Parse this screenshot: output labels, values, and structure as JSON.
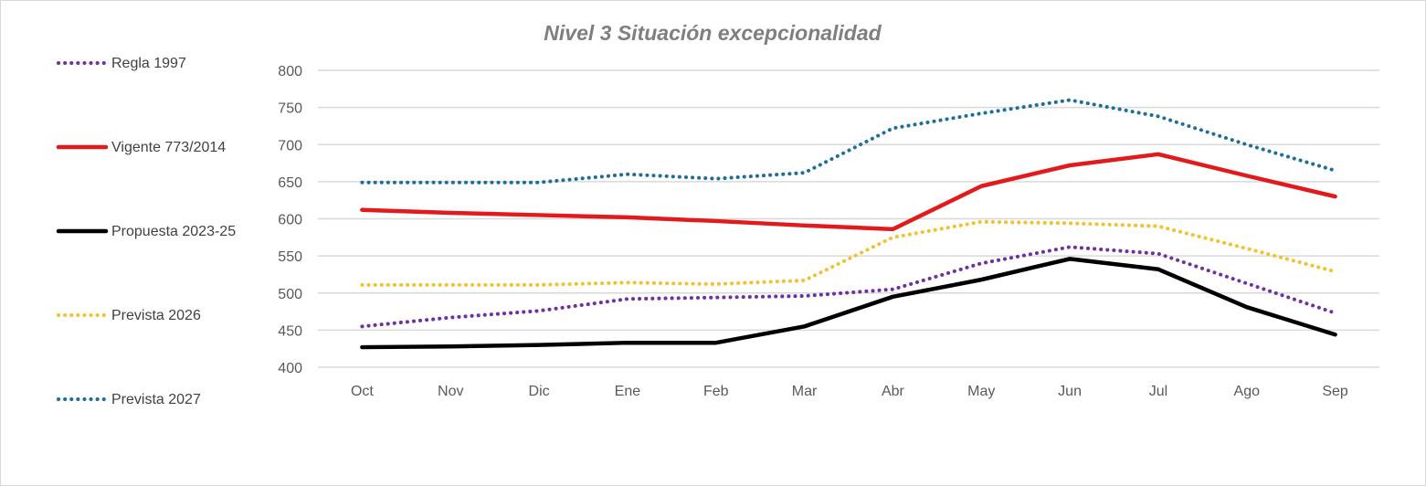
{
  "chart_data": {
    "type": "line",
    "title": "Nivel 3 Situación excepcionalidad",
    "xlabel": "",
    "ylabel": "",
    "categories": [
      "Oct",
      "Nov",
      "Dic",
      "Ene",
      "Feb",
      "Mar",
      "Abr",
      "May",
      "Jun",
      "Jul",
      "Ago",
      "Sep"
    ],
    "ylim": [
      400,
      800
    ],
    "yticks": [
      400,
      450,
      500,
      550,
      600,
      650,
      700,
      750,
      800
    ],
    "grid": true,
    "legend_placement": "left",
    "series": [
      {
        "name": "Regla 1997",
        "color": "#7030a0",
        "style": "dotted",
        "values": [
          455,
          467,
          476,
          492,
          494,
          496,
          505,
          540,
          562,
          553,
          513,
          473
        ]
      },
      {
        "name": "Vigente 773/2014",
        "color": "#e31a1c",
        "style": "solid",
        "values": [
          612,
          608,
          605,
          602,
          597,
          591,
          586,
          644,
          672,
          687,
          658,
          630
        ]
      },
      {
        "name": "Propuesta 2023-25",
        "color": "#000000",
        "style": "solid",
        "values": [
          427,
          428,
          430,
          433,
          433,
          455,
          495,
          518,
          546,
          532,
          481,
          444
        ]
      },
      {
        "name": "Prevista 2026",
        "color": "#f2c12e",
        "style": "dotted",
        "values": [
          511,
          511,
          511,
          514,
          512,
          517,
          575,
          596,
          594,
          590,
          560,
          529
        ]
      },
      {
        "name": "Prevista 2027",
        "color": "#1f6e99",
        "style": "dotted",
        "values": [
          649,
          649,
          649,
          660,
          654,
          662,
          722,
          742,
          760,
          738,
          700,
          665
        ]
      }
    ]
  }
}
